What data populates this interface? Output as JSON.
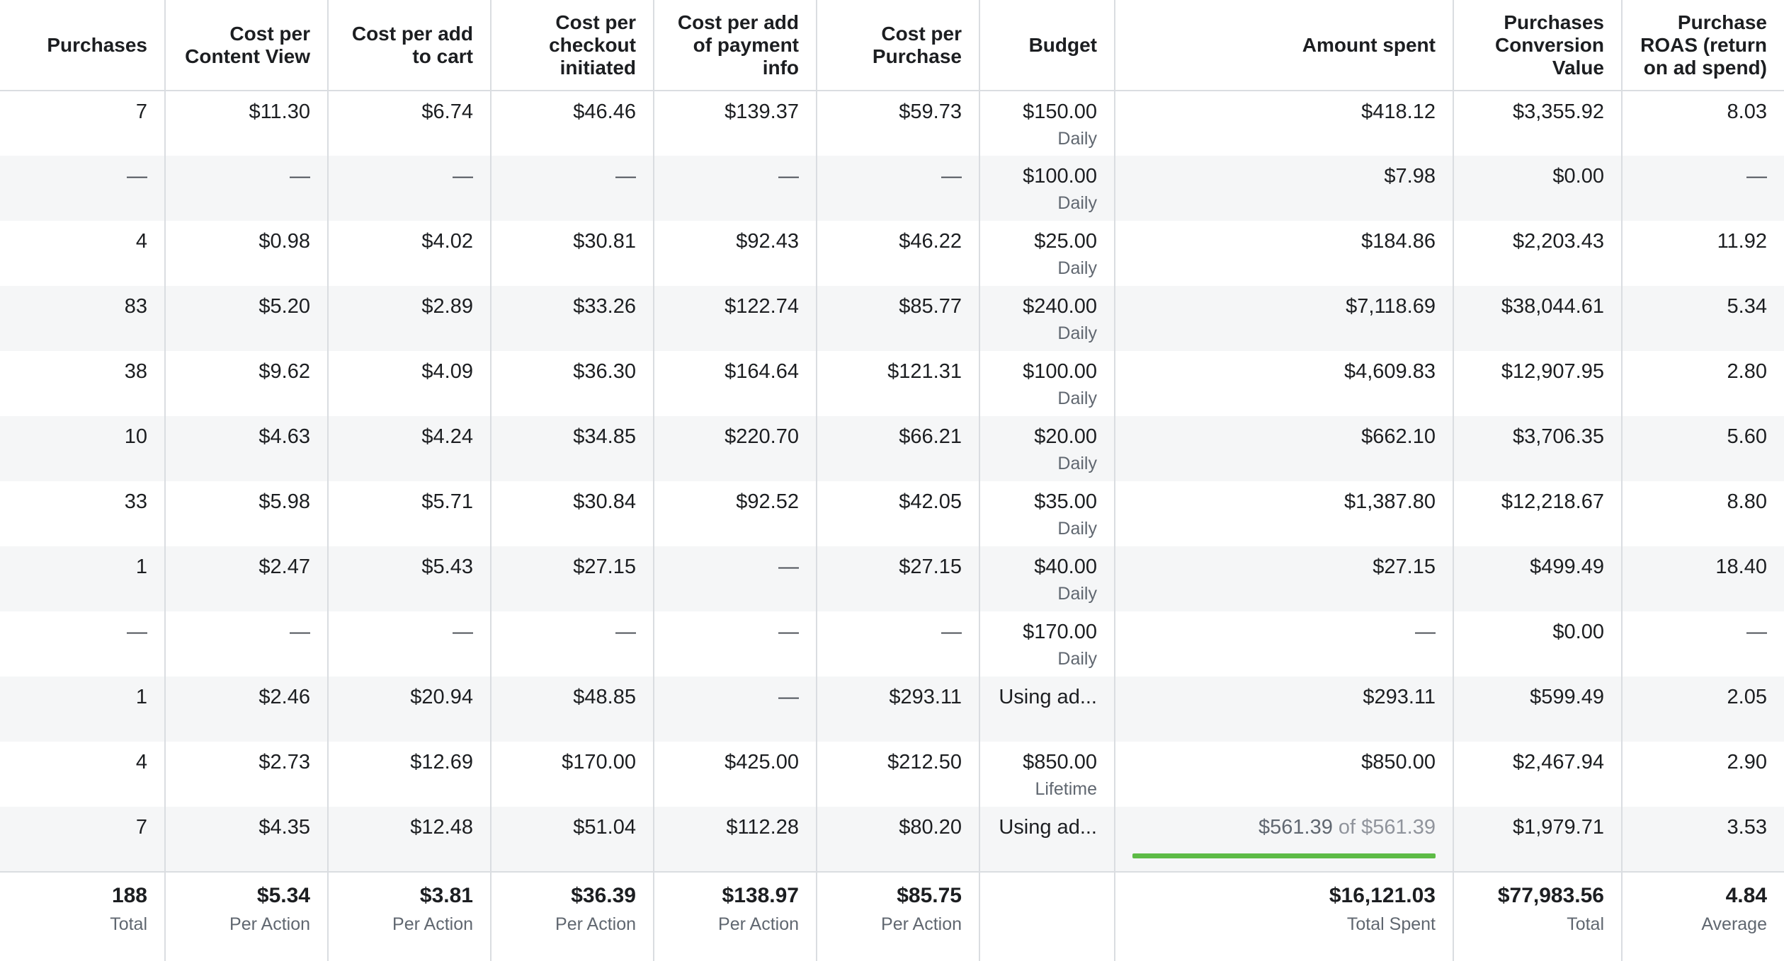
{
  "columns": [
    "Purchases",
    "Cost per Content View",
    "Cost per add to cart",
    "Cost per checkout initiated",
    "Cost per add of payment info",
    "Cost per Purchase",
    "Budget",
    "Amount spent",
    "Purchases Conversion Value",
    "Purchase ROAS (return on ad spend)"
  ],
  "rows": [
    {
      "purchases": "7",
      "cpcv": "$11.30",
      "cpatc": "$6.74",
      "cpci": "$46.46",
      "cpapi": "$139.37",
      "cpp": "$59.73",
      "budget": "$150.00",
      "budget_type": "Daily",
      "spent": "$418.12",
      "value": "$3,355.92",
      "roas": "8.03"
    },
    {
      "purchases": "—",
      "cpcv": "—",
      "cpatc": "—",
      "cpci": "—",
      "cpapi": "—",
      "cpp": "—",
      "budget": "$100.00",
      "budget_type": "Daily",
      "spent": "$7.98",
      "value": "$0.00",
      "roas": "—"
    },
    {
      "purchases": "4",
      "cpcv": "$0.98",
      "cpatc": "$4.02",
      "cpci": "$30.81",
      "cpapi": "$92.43",
      "cpp": "$46.22",
      "budget": "$25.00",
      "budget_type": "Daily",
      "spent": "$184.86",
      "value": "$2,203.43",
      "roas": "11.92"
    },
    {
      "purchases": "83",
      "cpcv": "$5.20",
      "cpatc": "$2.89",
      "cpci": "$33.26",
      "cpapi": "$122.74",
      "cpp": "$85.77",
      "budget": "$240.00",
      "budget_type": "Daily",
      "spent": "$7,118.69",
      "value": "$38,044.61",
      "roas": "5.34"
    },
    {
      "purchases": "38",
      "cpcv": "$9.62",
      "cpatc": "$4.09",
      "cpci": "$36.30",
      "cpapi": "$164.64",
      "cpp": "$121.31",
      "budget": "$100.00",
      "budget_type": "Daily",
      "spent": "$4,609.83",
      "value": "$12,907.95",
      "roas": "2.80"
    },
    {
      "purchases": "10",
      "cpcv": "$4.63",
      "cpatc": "$4.24",
      "cpci": "$34.85",
      "cpapi": "$220.70",
      "cpp": "$66.21",
      "budget": "$20.00",
      "budget_type": "Daily",
      "spent": "$662.10",
      "value": "$3,706.35",
      "roas": "5.60"
    },
    {
      "purchases": "33",
      "cpcv": "$5.98",
      "cpatc": "$5.71",
      "cpci": "$30.84",
      "cpapi": "$92.52",
      "cpp": "$42.05",
      "budget": "$35.00",
      "budget_type": "Daily",
      "spent": "$1,387.80",
      "value": "$12,218.67",
      "roas": "8.80"
    },
    {
      "purchases": "1",
      "cpcv": "$2.47",
      "cpatc": "$5.43",
      "cpci": "$27.15",
      "cpapi": "—",
      "cpp": "$27.15",
      "budget": "$40.00",
      "budget_type": "Daily",
      "spent": "$27.15",
      "value": "$499.49",
      "roas": "18.40"
    },
    {
      "purchases": "—",
      "cpcv": "—",
      "cpatc": "—",
      "cpci": "—",
      "cpapi": "—",
      "cpp": "—",
      "budget": "$170.00",
      "budget_type": "Daily",
      "spent": "—",
      "value": "$0.00",
      "roas": "—"
    },
    {
      "purchases": "1",
      "cpcv": "$2.46",
      "cpatc": "$20.94",
      "cpci": "$48.85",
      "cpapi": "—",
      "cpp": "$293.11",
      "budget": "Using ad...",
      "budget_type": "",
      "spent": "$293.11",
      "value": "$599.49",
      "roas": "2.05"
    },
    {
      "purchases": "4",
      "cpcv": "$2.73",
      "cpatc": "$12.69",
      "cpci": "$170.00",
      "cpapi": "$425.00",
      "cpp": "$212.50",
      "budget": "$850.00",
      "budget_type": "Lifetime",
      "spent": "$850.00",
      "value": "$2,467.94",
      "roas": "2.90"
    },
    {
      "purchases": "7",
      "cpcv": "$4.35",
      "cpatc": "$12.48",
      "cpci": "$51.04",
      "cpapi": "$112.28",
      "cpp": "$80.20",
      "budget": "Using ad...",
      "budget_type": "",
      "spent": "$561.39",
      "spent_of_word": "of",
      "spent_of_total": "$561.39",
      "spent_progress": 1.0,
      "value": "$1,979.71",
      "roas": "3.53"
    }
  ],
  "totals": {
    "purchases": {
      "value": "188",
      "label": "Total"
    },
    "cpcv": {
      "value": "$5.34",
      "label": "Per Action"
    },
    "cpatc": {
      "value": "$3.81",
      "label": "Per Action"
    },
    "cpci": {
      "value": "$36.39",
      "label": "Per Action"
    },
    "cpapi": {
      "value": "$138.97",
      "label": "Per Action"
    },
    "cpp": {
      "value": "$85.75",
      "label": "Per Action"
    },
    "budget": {
      "value": "",
      "label": ""
    },
    "spent": {
      "value": "$16,121.03",
      "label": "Total Spent"
    },
    "value": {
      "value": "$77,983.56",
      "label": "Total"
    },
    "roas": {
      "value": "4.84",
      "label": "Average"
    }
  },
  "colors": {
    "progress_fill": "#5dbb46",
    "row_alt": "#f5f6f7",
    "border": "#dadde1",
    "muted_text": "#606770"
  }
}
